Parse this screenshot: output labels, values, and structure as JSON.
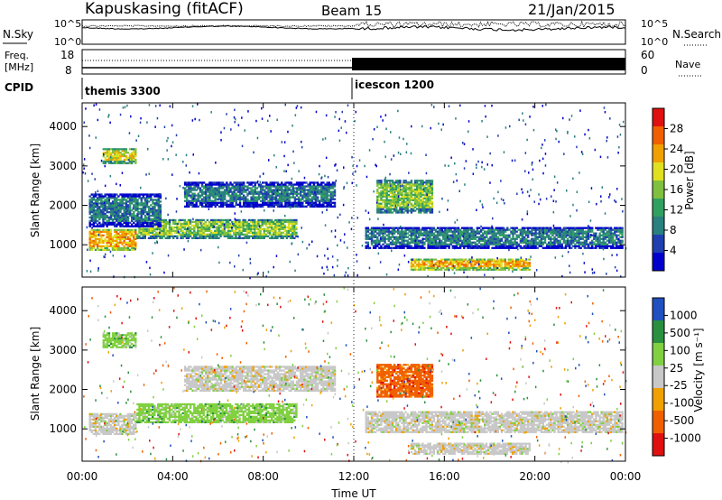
{
  "header": {
    "station": "Kapuskasing (fitACF)",
    "beam": "Beam 15",
    "date": "21/Jan/2015"
  },
  "noise_panel": {
    "left_label": "N.Sky",
    "right_label": "N.Search",
    "ticks": [
      "10^5",
      "10^0"
    ],
    "right_legend_line": "dotted"
  },
  "freq_panel": {
    "left_label_top": "Freq.",
    "left_label_bottom": "[MHz]",
    "left_ticks": [
      "18",
      "8"
    ],
    "right_label": "Nave",
    "right_ticks": [
      "60",
      "0"
    ],
    "right_legend_line": "dotted"
  },
  "cpid_panel": {
    "label": "CPID",
    "modes": [
      {
        "name": "themis 3300",
        "start_hour": 0,
        "end_hour": 12
      },
      {
        "name": "icescon 1200",
        "start_hour": 12,
        "end_hour": 24
      }
    ]
  },
  "power_panel": {
    "ylabel": "Slant Range [km]",
    "yticks": [
      "1000",
      "2000",
      "3000",
      "4000"
    ],
    "colorbar_label": "Power [dB]",
    "colorbar_ticks": [
      "28",
      "24",
      "20",
      "16",
      "12",
      "8",
      "4"
    ]
  },
  "velocity_panel": {
    "ylabel": "Slant Range [km]",
    "yticks": [
      "1000",
      "2000",
      "3000",
      "4000"
    ],
    "colorbar_label": "Velocity [m s⁻¹]",
    "colorbar_ticks": [
      "1000",
      "500",
      "100",
      "25",
      "-25",
      "-100",
      "-500",
      "-1000"
    ]
  },
  "x_axis": {
    "label": "Time UT",
    "ticks": [
      "00:00",
      "04:00",
      "08:00",
      "12:00",
      "16:00",
      "20:00",
      "00:00"
    ]
  },
  "chart_data": [
    {
      "type": "heatmap",
      "title": "Power [dB]",
      "xlabel": "Time UT",
      "ylabel": "Slant Range [km]",
      "xlim_hours": [
        0,
        24
      ],
      "ylim_km": [
        180,
        4600
      ],
      "zlim": [
        0,
        30
      ],
      "colors": [
        "#0000cc",
        "#1f3fb0",
        "#2a7f7f",
        "#30a060",
        "#7fc040",
        "#e0e020",
        "#f0a000",
        "#f06000",
        "#e01010"
      ],
      "echo_regions": [
        {
          "t": [
            0.3,
            2.4
          ],
          "r": [
            850,
            1400
          ],
          "power": 22
        },
        {
          "t": [
            2.4,
            9.5
          ],
          "r": [
            1150,
            1650
          ],
          "power": 16
        },
        {
          "t": [
            0.9,
            2.4
          ],
          "r": [
            3050,
            3450
          ],
          "power": 18
        },
        {
          "t": [
            0.3,
            3.5
          ],
          "r": [
            1450,
            2300
          ],
          "power": 6
        },
        {
          "t": [
            4.5,
            11.2
          ],
          "r": [
            1950,
            2600
          ],
          "power": 8
        },
        {
          "t": [
            12.5,
            23.9
          ],
          "r": [
            900,
            1450
          ],
          "power": 9
        },
        {
          "t": [
            13.0,
            15.5
          ],
          "r": [
            1800,
            2650
          ],
          "power": 16
        },
        {
          "t": [
            14.5,
            19.8
          ],
          "r": [
            350,
            650
          ],
          "power": 21
        }
      ]
    },
    {
      "type": "heatmap",
      "title": "Velocity [m s⁻¹]",
      "xlabel": "Time UT",
      "ylabel": "Slant Range [km]",
      "xlim_hours": [
        0,
        24
      ],
      "ylim_km": [
        180,
        4600
      ],
      "zlim": [
        -1000,
        1000
      ],
      "colors": [
        "#e01010",
        "#f06000",
        "#f0a000",
        "#c8c8c8",
        "#80d040",
        "#2a9040",
        "#2050c0"
      ],
      "echo_regions": [
        {
          "t": [
            0.3,
            2.4
          ],
          "r": [
            850,
            1400
          ],
          "velocity": 0
        },
        {
          "t": [
            2.4,
            9.5
          ],
          "r": [
            1150,
            1650
          ],
          "velocity": 150
        },
        {
          "t": [
            0.9,
            2.4
          ],
          "r": [
            3050,
            3450
          ],
          "velocity": 120
        },
        {
          "t": [
            4.5,
            11.2
          ],
          "r": [
            1950,
            2600
          ],
          "velocity": 0
        },
        {
          "t": [
            12.5,
            23.9
          ],
          "r": [
            900,
            1450
          ],
          "velocity": 0
        },
        {
          "t": [
            13.0,
            15.5
          ],
          "r": [
            1800,
            2650
          ],
          "velocity": -300
        },
        {
          "t": [
            14.5,
            19.8
          ],
          "r": [
            350,
            650
          ],
          "velocity": 0
        }
      ]
    }
  ]
}
